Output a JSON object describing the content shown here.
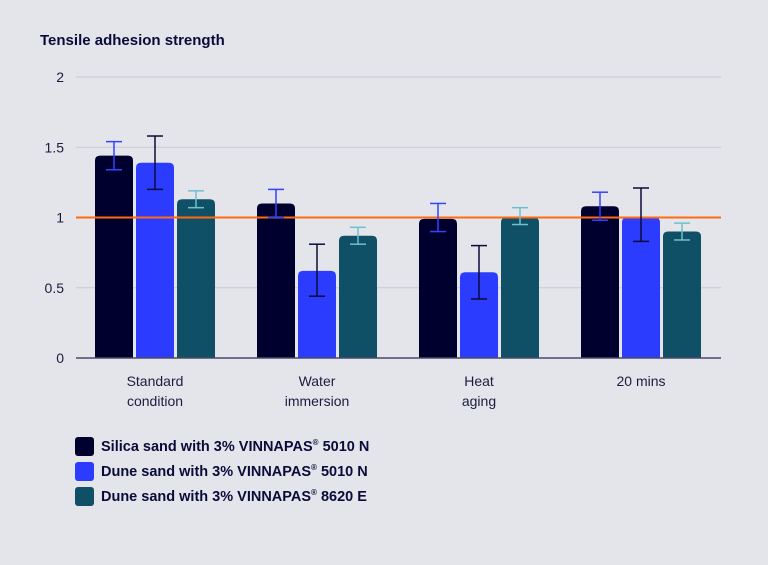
{
  "chart_data": {
    "type": "bar",
    "title": "Tensile adhesion strength",
    "xlabel": "",
    "ylabel": "",
    "ylim": [
      0,
      2
    ],
    "yticks": [
      "0",
      "0.5",
      "1",
      "1.5",
      "2"
    ],
    "grid": true,
    "reference_line": {
      "value": 1,
      "color": "#ff6a13"
    },
    "categories": [
      [
        "Standard",
        "condition"
      ],
      [
        "Water",
        "immersion"
      ],
      [
        "Heat",
        "aging"
      ],
      [
        "20 mins"
      ]
    ],
    "series": [
      {
        "name": "Silica sand with 3% VINNAPAS® 5010 N",
        "color": "#00002e",
        "error_color": "#3344ff",
        "values": [
          1.44,
          1.1,
          0.99,
          1.08
        ],
        "error_low": [
          1.34,
          1.0,
          0.9,
          0.98
        ],
        "error_high": [
          1.54,
          1.2,
          1.1,
          1.18
        ]
      },
      {
        "name": "Dune sand with 3% VINNAPAS® 5010 N",
        "color": "#2b3cff",
        "error_color": "#0b0b3a",
        "values": [
          1.39,
          0.62,
          0.61,
          1.0
        ],
        "error_low": [
          1.2,
          0.44,
          0.42,
          0.83
        ],
        "error_high": [
          1.58,
          0.81,
          0.8,
          1.21
        ]
      },
      {
        "name": "Dune sand with 3% VINNAPAS® 8620 E",
        "color": "#0f5066",
        "error_color": "#6fc0cc",
        "values": [
          1.13,
          0.87,
          1.0,
          0.9
        ],
        "error_low": [
          1.07,
          0.81,
          0.95,
          0.84
        ],
        "error_high": [
          1.19,
          0.93,
          1.07,
          0.96
        ]
      }
    ],
    "legend_position": "bottom-left"
  },
  "legend": [
    {
      "prefix": "Silica sand with 3% VINNAPAS",
      "reg": "®",
      "suffix": " 5010 N"
    },
    {
      "prefix": "Dune sand with 3% VINNAPAS",
      "reg": "®",
      "suffix": " 5010 N"
    },
    {
      "prefix": "Dune sand with 3% VINNAPAS",
      "reg": "®",
      "suffix": " 8620 E"
    }
  ]
}
